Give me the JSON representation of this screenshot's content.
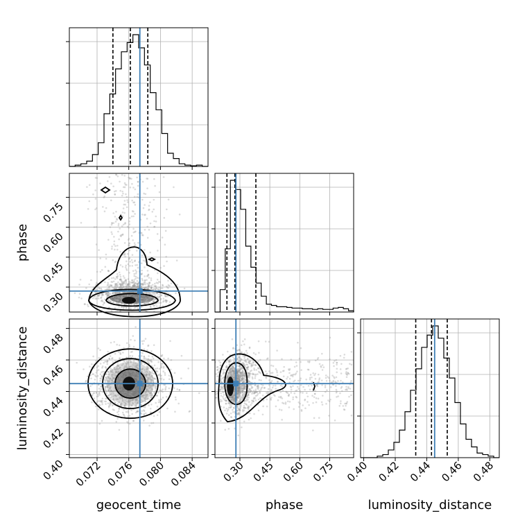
{
  "chart_data": {
    "type": "corner",
    "parameters": [
      "geocent_time",
      "phase",
      "luminosity_distance"
    ],
    "axis_labels": {
      "geocent_time": "geocent_time",
      "phase": "phase",
      "luminosity_distance": "luminosity_distance"
    },
    "ranges": {
      "geocent_time": [
        0.0685,
        0.086
      ],
      "phase": [
        0.175,
        0.87
      ],
      "luminosity_distance": [
        0.398,
        0.486
      ]
    },
    "ticks": {
      "geocent_time": [
        "0.072",
        "0.076",
        "0.080",
        "0.084"
      ],
      "phase": [
        "0.30",
        "0.45",
        "0.60",
        "0.75"
      ],
      "luminosity_distance": [
        "0.40",
        "0.42",
        "0.44",
        "0.46",
        "0.48"
      ]
    },
    "truths": {
      "geocent_time": 0.0774,
      "phase": 0.28,
      "luminosity_distance": 0.445
    },
    "quantiles": {
      "geocent_time": [
        0.074,
        0.0762,
        0.0784
      ],
      "phase": [
        0.235,
        0.275,
        0.38
      ],
      "luminosity_distance": [
        0.433,
        0.443,
        0.453
      ]
    },
    "histograms": {
      "geocent_time": {
        "edges_range": [
          0.0685,
          0.086
        ],
        "counts": [
          0,
          0.01,
          0.02,
          0.04,
          0.09,
          0.18,
          0.4,
          0.55,
          0.74,
          0.87,
          0.94,
          1.0,
          0.9,
          0.77,
          0.56,
          0.43,
          0.25,
          0.1,
          0.06,
          0.02,
          0.01,
          0.005,
          0.01,
          0
        ]
      },
      "phase": {
        "edges_range": [
          0.175,
          0.87
        ],
        "counts": [
          0,
          0.17,
          0.48,
          1.0,
          0.93,
          0.78,
          0.5,
          0.34,
          0.22,
          0.12,
          0.06,
          0.05,
          0.04,
          0.04,
          0.035,
          0.03,
          0.03,
          0.025,
          0.025,
          0.02,
          0.025,
          0.02,
          0.02,
          0.03,
          0.035,
          0.025,
          0.01
        ]
      },
      "luminosity_distance": {
        "edges_range": [
          0.398,
          0.486
        ],
        "counts": [
          0,
          0,
          0,
          0.01,
          0.02,
          0.05,
          0.1,
          0.18,
          0.3,
          0.44,
          0.58,
          0.72,
          0.8,
          0.86,
          0.78,
          0.65,
          0.52,
          0.36,
          0.22,
          0.12,
          0.07,
          0.03,
          0.02,
          0.01,
          0
        ]
      }
    },
    "grid": true
  }
}
